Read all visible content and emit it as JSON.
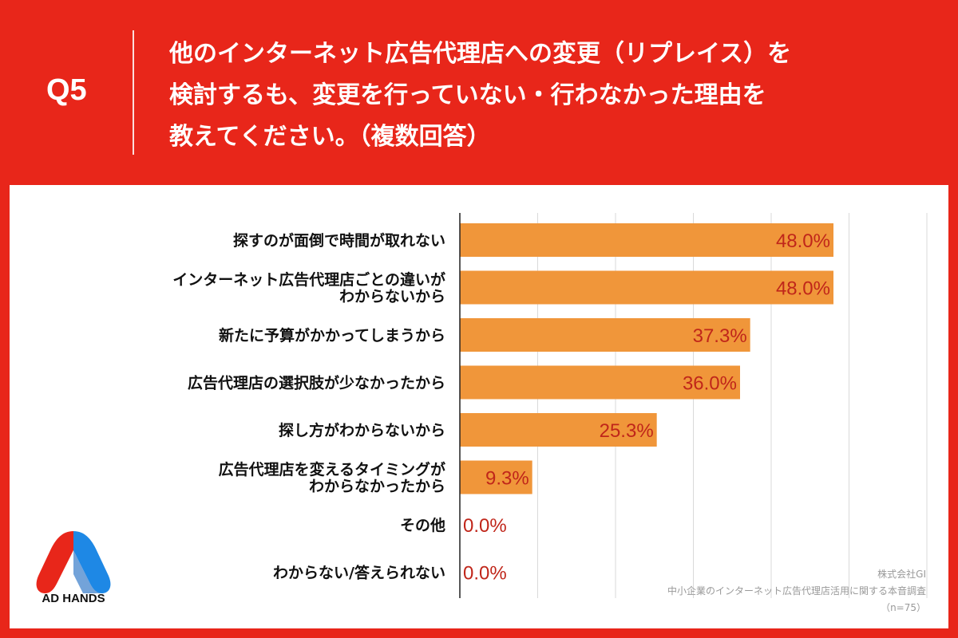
{
  "header": {
    "question_number": "Q5",
    "question_lines": [
      "他のインターネット広告代理店への変更（リプレイス）を",
      "検討するも、変更を行っていない・行わなかった理由を",
      "教えてください。（複数回答）"
    ]
  },
  "chart_data": {
    "type": "bar",
    "orientation": "horizontal",
    "categories": [
      [
        "探すのが面倒で時間が取れない"
      ],
      [
        "インターネット広告代理店ごとの違いが",
        "わからないから"
      ],
      [
        "新たに予算がかかってしまうから"
      ],
      [
        "広告代理店の選択肢が少なかったから"
      ],
      [
        "探し方がわからないから"
      ],
      [
        "広告代理店を変えるタイミングが",
        "わからなかったから"
      ],
      [
        "その他"
      ],
      [
        "わからない/答えられない"
      ]
    ],
    "values": [
      48.0,
      48.0,
      37.3,
      36.0,
      25.3,
      9.3,
      0.0,
      0.0
    ],
    "value_labels": [
      "48.0%",
      "48.0%",
      "37.3%",
      "36.0%",
      "25.3%",
      "9.3%",
      "0.0%",
      "0.0%"
    ],
    "xlim": [
      0,
      60
    ],
    "grid": true,
    "bar_color": "#f0963a",
    "value_label_color": "#c0261a"
  },
  "logo": {
    "text": "AD HANDS",
    "colors": [
      "#e8261a",
      "#1e88e5"
    ]
  },
  "source": {
    "company": "株式会社GI",
    "survey": "中小企業のインターネット広告代理店活用に関する本音調査",
    "sample": "（n=75）"
  }
}
